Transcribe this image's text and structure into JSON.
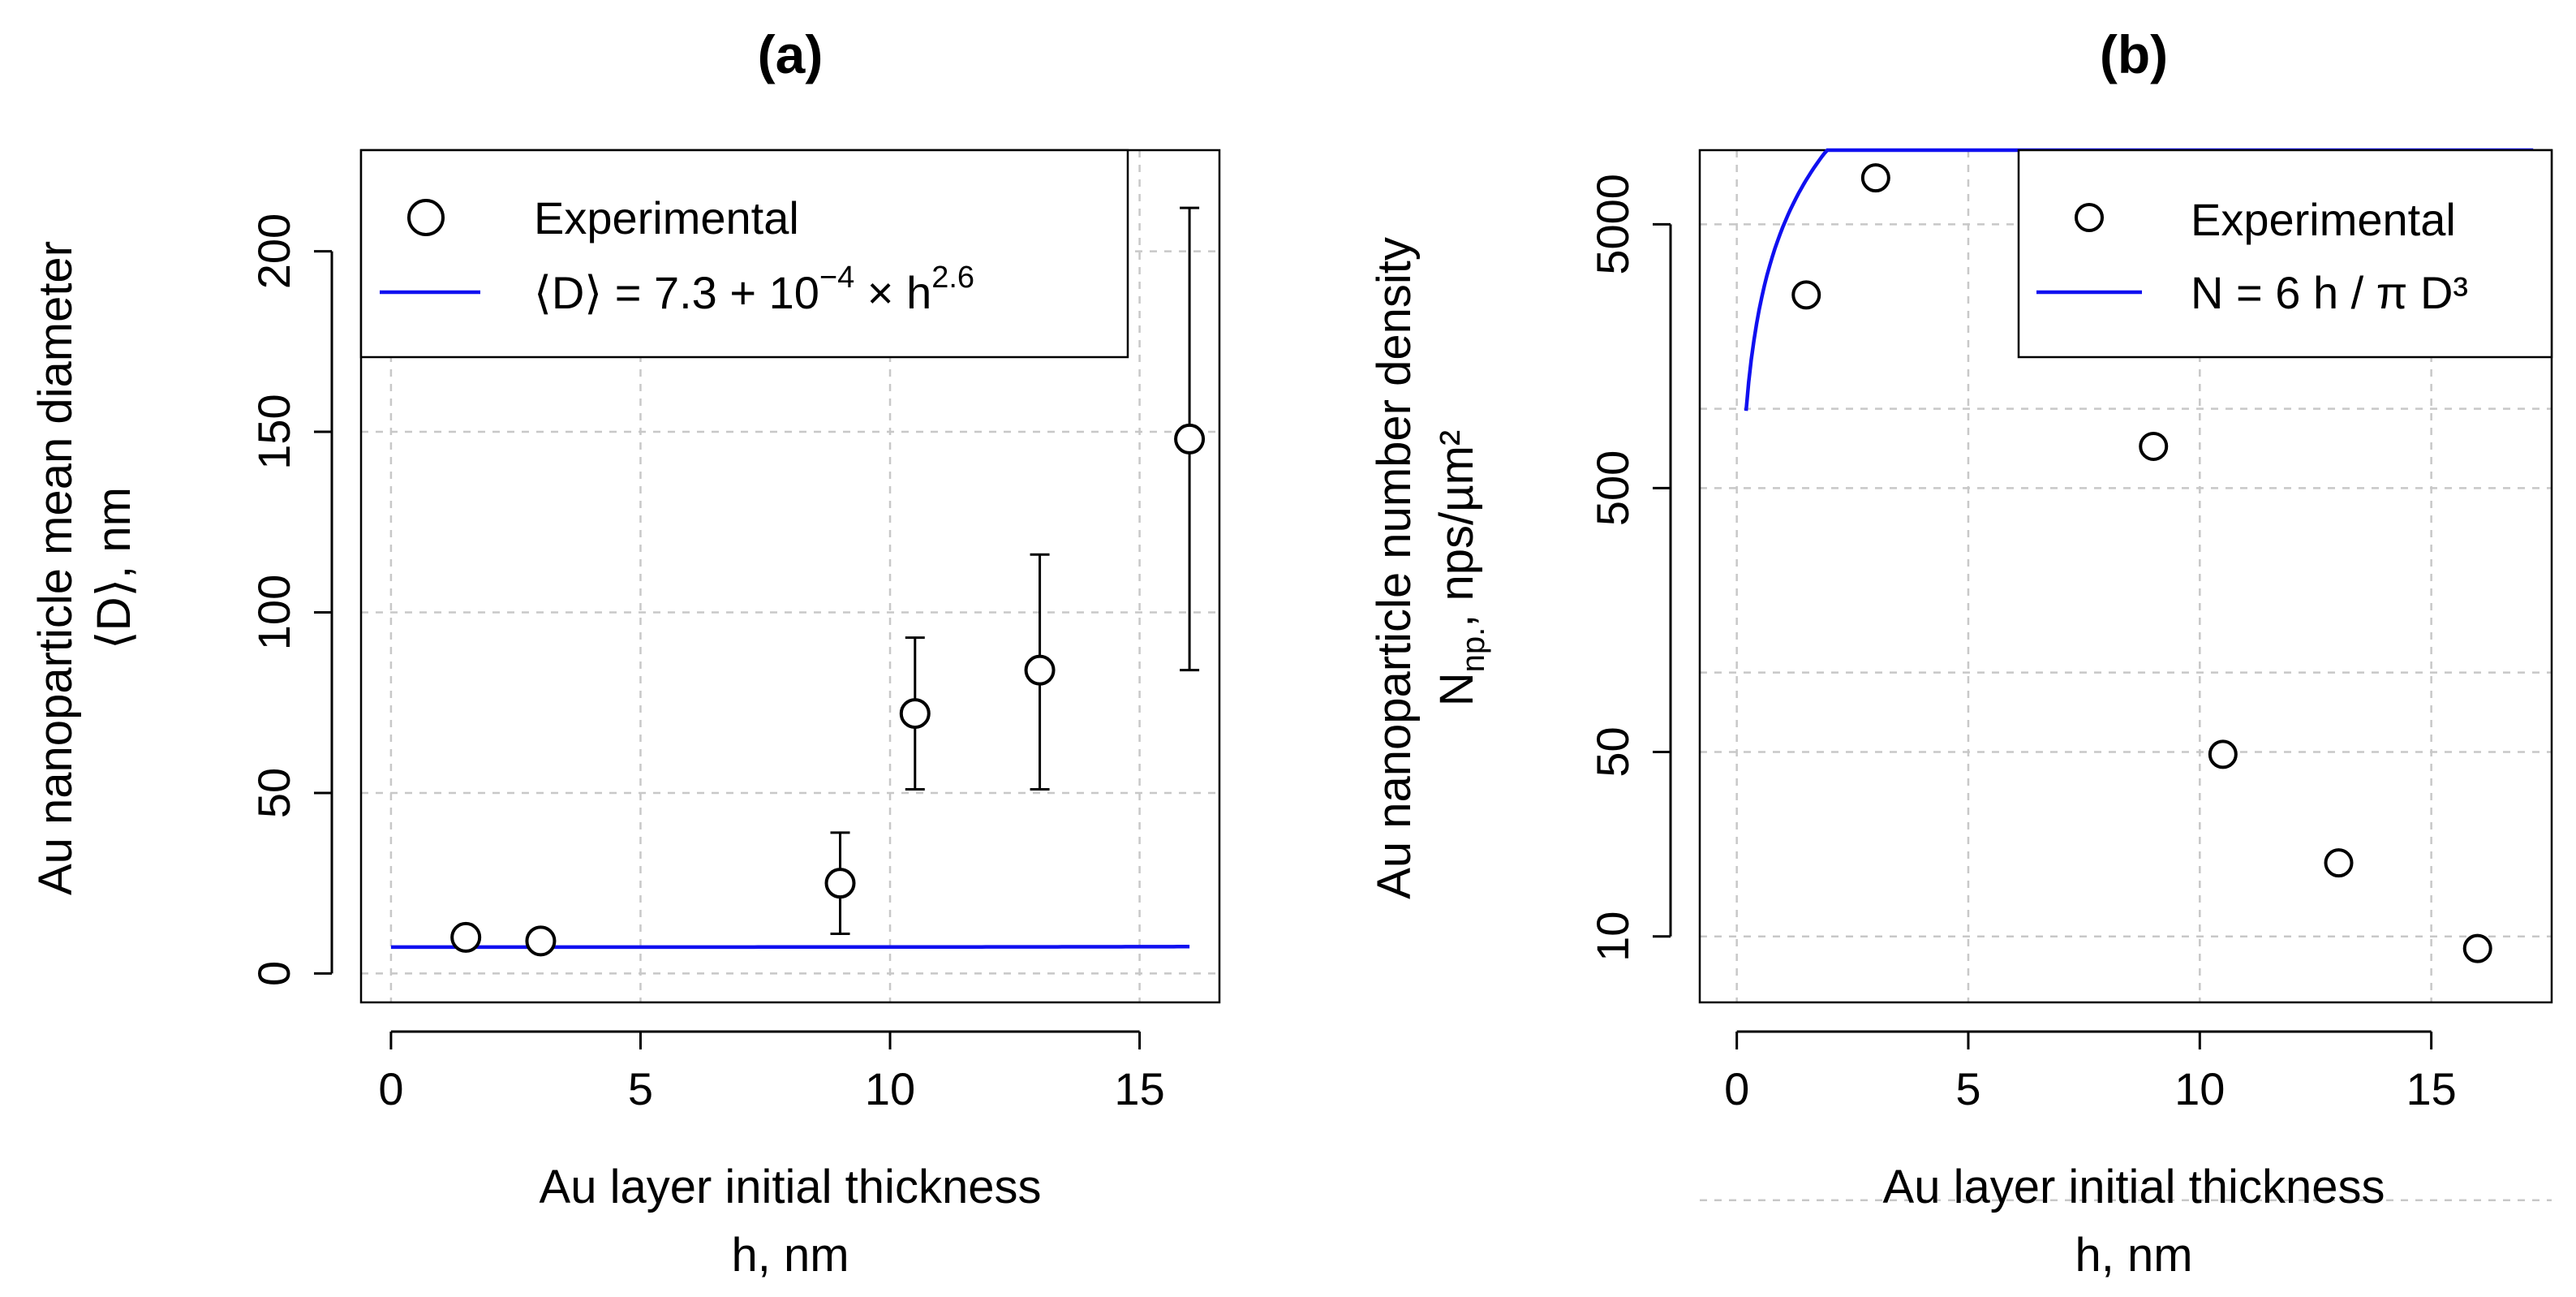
{
  "chart_data": [
    {
      "panel": "(a)",
      "type": "scatter",
      "title": "(a)",
      "xlabel": [
        "Au layer initial thickness",
        "h, nm"
      ],
      "ylabel": [
        "Au nanoparticle mean diameter",
        "⟨D⟩, nm"
      ],
      "xlim": [
        -0.6,
        16.6
      ],
      "ylim": [
        -8,
        228
      ],
      "xticks": [
        0,
        5,
        10,
        15
      ],
      "yticks": [
        0,
        50,
        100,
        150,
        200
      ],
      "ytick_labels": [
        "0",
        "50",
        "100",
        "150",
        "200"
      ],
      "grid": true,
      "legend_position": "top-left",
      "series": [
        {
          "name": "Experimental",
          "kind": "points",
          "x": [
            1.5,
            3,
            9,
            10.5,
            13,
            16
          ],
          "y": [
            10,
            9,
            25,
            72,
            84,
            148
          ],
          "yerr_low": [
            7,
            9,
            11,
            51,
            51,
            84
          ],
          "yerr_high": [
            13,
            9,
            39,
            93,
            116,
            212
          ]
        },
        {
          "name": "Fit",
          "kind": "line",
          "equation": {
            "a": 7.3,
            "b": 0.0001,
            "p": 2.6
          },
          "x_range": [
            0,
            16
          ]
        }
      ],
      "legend": {
        "experimental": "Experimental",
        "fit_prefix": "⟨D⟩ = 7.3 + 10",
        "fit_exp1": "−4",
        "fit_mid": " × h",
        "fit_exp2": "2.6"
      }
    },
    {
      "panel": "(b)",
      "type": "scatter",
      "title": "(b)",
      "xlabel": [
        "Au layer initial thickness",
        "h, nm"
      ],
      "ylabel": [
        "Au nanoparticle number density",
        "N",
        "np.",
        ", nps/µm²"
      ],
      "xlim": [
        -0.8,
        17.6
      ],
      "ylim_log10": [
        0.75,
        3.98
      ],
      "yscale": "log",
      "xticks": [
        0,
        5,
        10,
        15
      ],
      "yticks": [
        10,
        50,
        500,
        5000
      ],
      "ytick_labels": [
        "10",
        "50",
        "500",
        "5000"
      ],
      "minor_grid": [
        1,
        100,
        1000
      ],
      "grid": true,
      "legend_position": "top-right",
      "series": [
        {
          "name": "Experimental",
          "kind": "points",
          "x": [
            1.5,
            3,
            9,
            10.5,
            13,
            16
          ],
          "y": [
            2700,
            7500,
            720,
            49,
            19,
            9
          ]
        },
        {
          "name": "Fit",
          "kind": "line",
          "equation": "N = 6 h / (π D³), D = 7.3 + 1e-4·h^2.6, scaled to nps/µm²",
          "x_range": [
            0.2,
            17.2
          ]
        }
      ],
      "legend": {
        "experimental": "Experimental",
        "fit": "N = 6 h / π D³"
      }
    }
  ]
}
